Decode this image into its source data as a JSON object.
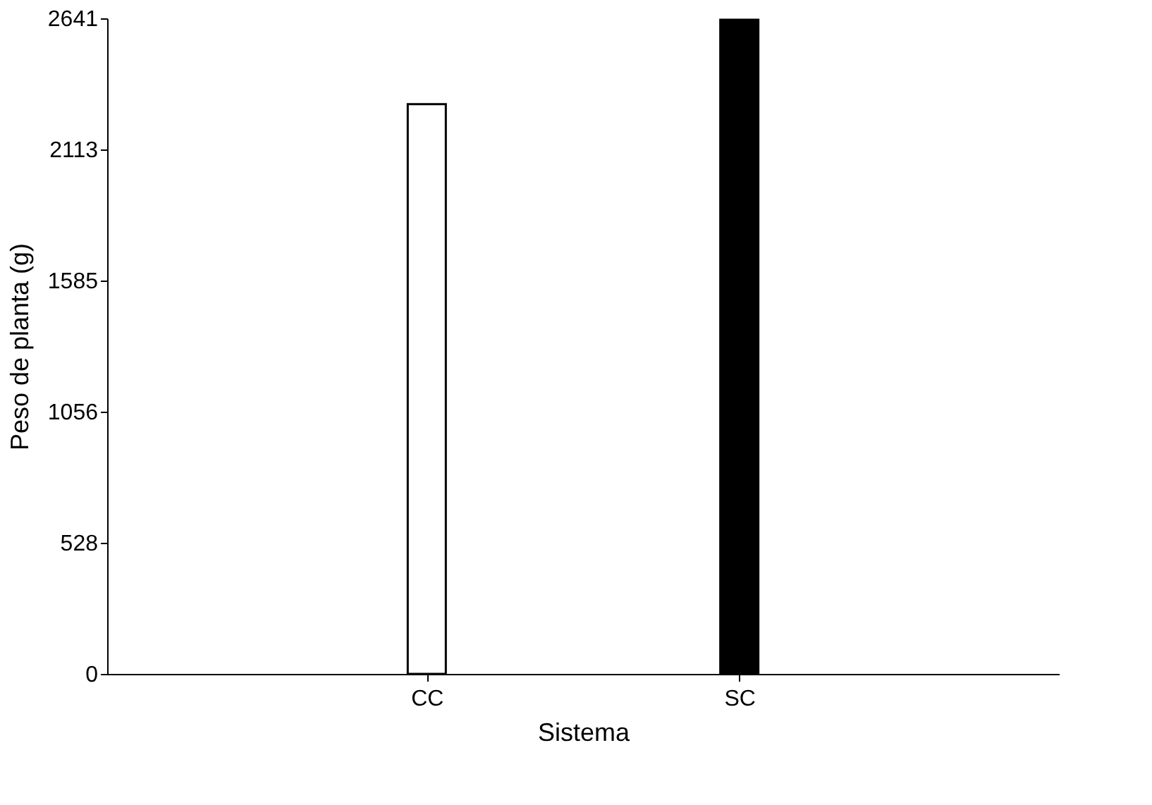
{
  "chart_data": {
    "type": "bar",
    "xlabel": "Sistema",
    "ylabel": "Peso de planta (g)",
    "categories": [
      "CC",
      "SC"
    ],
    "values": [
      2295,
      2635
    ],
    "colors": [
      "#ffffff",
      "#000000"
    ],
    "ylim": [
      0,
      2641
    ],
    "yticks": [
      0,
      528,
      1056,
      1585,
      2113,
      2641
    ],
    "grid": false,
    "legend": false
  }
}
